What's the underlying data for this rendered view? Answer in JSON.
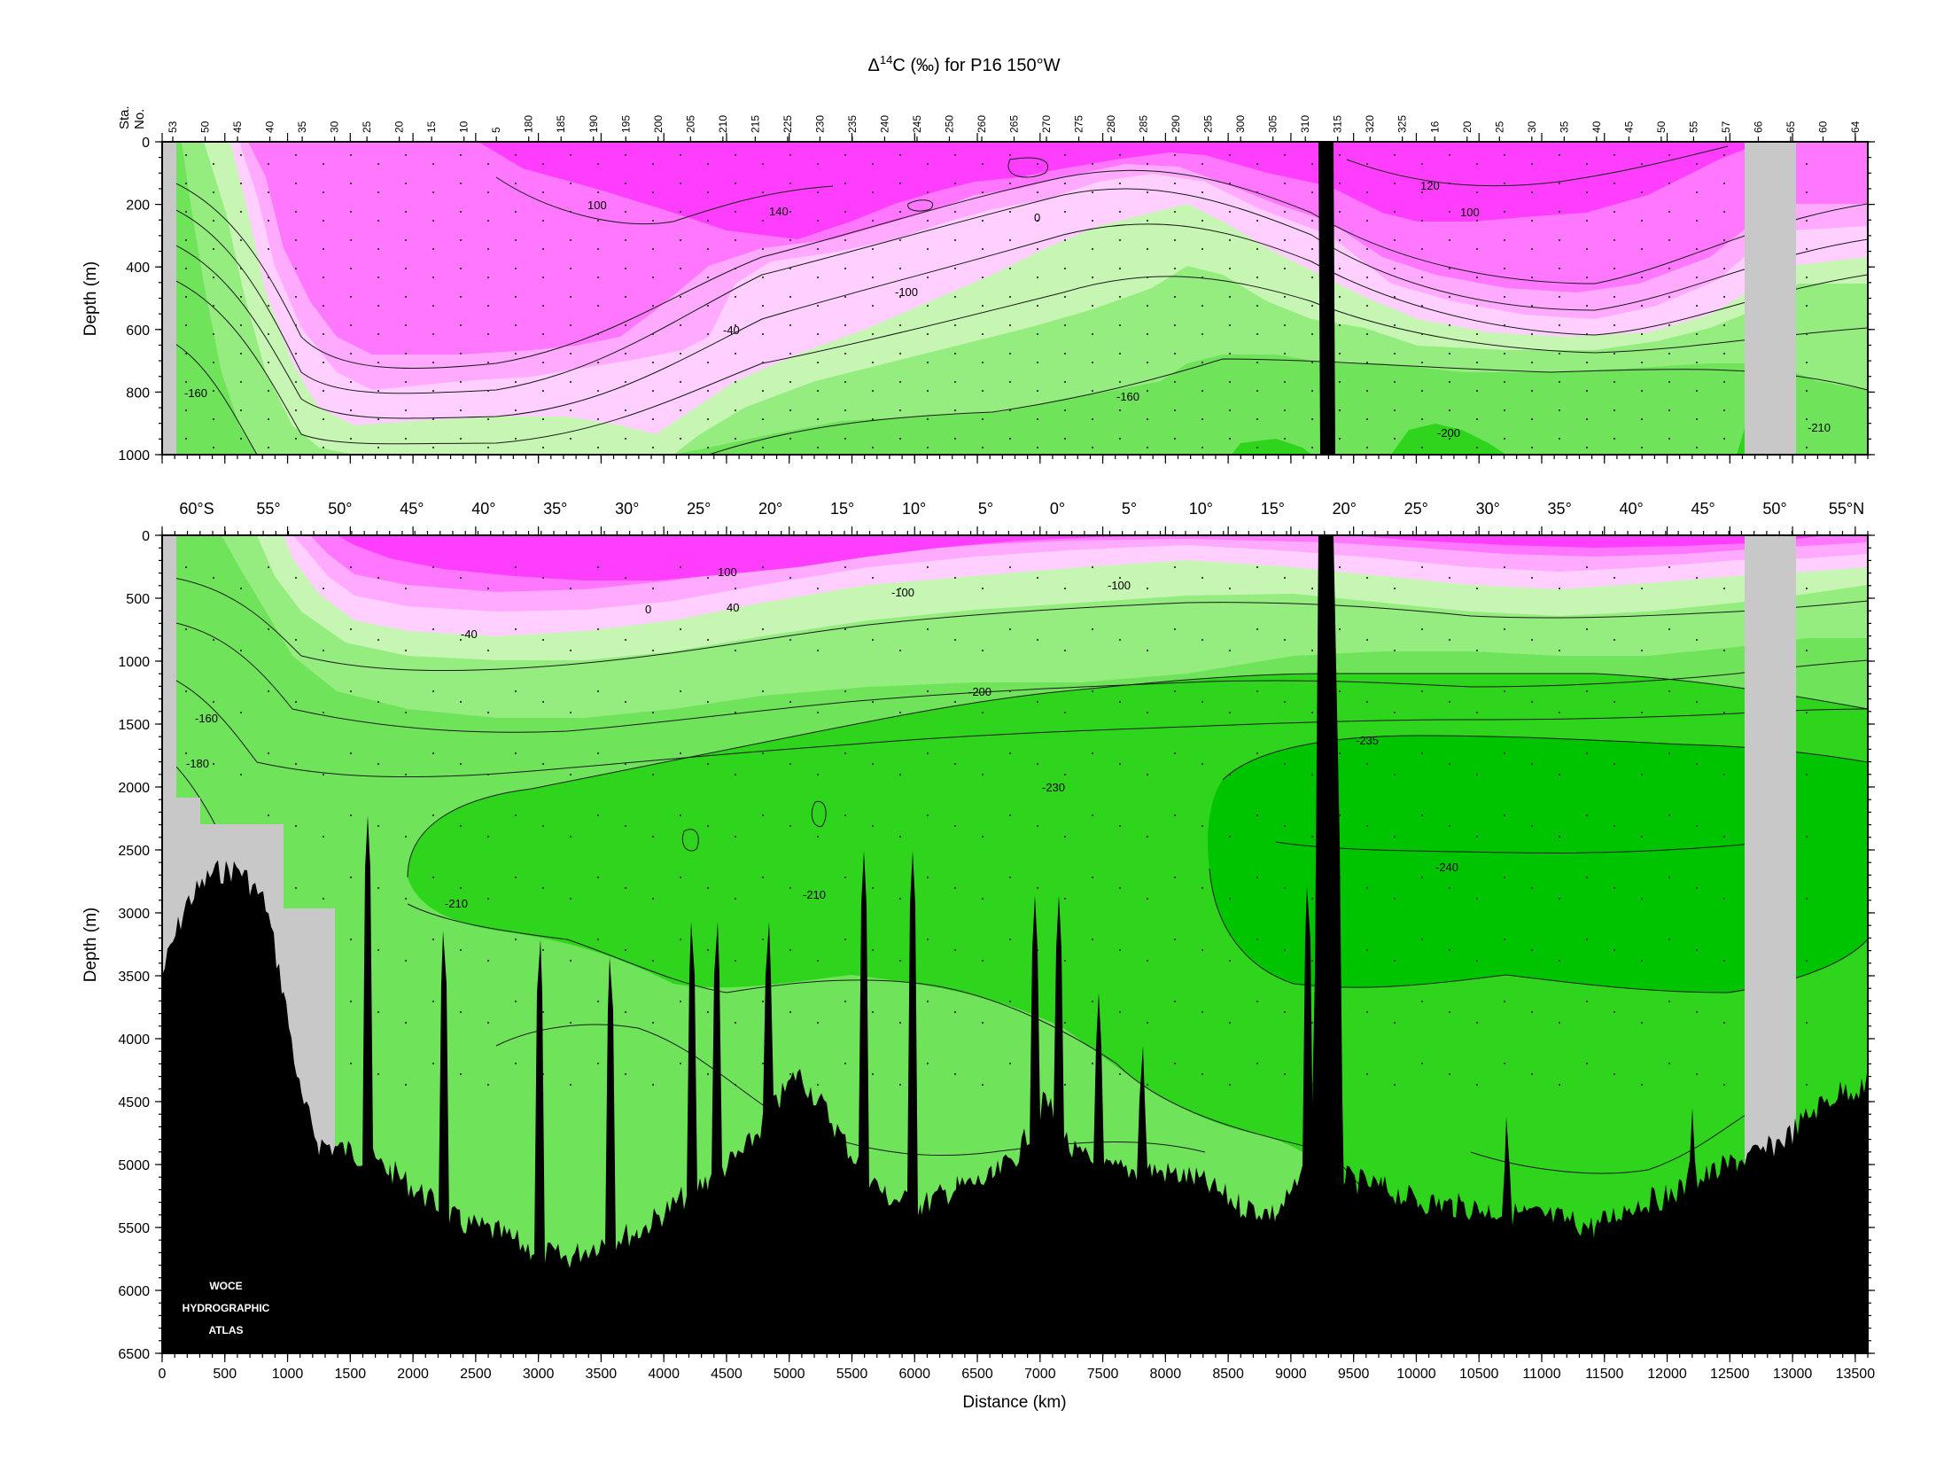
{
  "chart_data": {
    "type": "heatmap",
    "title_prefix": "Δ",
    "title_sup": "14",
    "title_rest": "C (‰) for P16 150°W",
    "station_axis_label": [
      "Sta.",
      "No."
    ],
    "stations": [
      "53",
      "50",
      "45",
      "40",
      "35",
      "30",
      "25",
      "20",
      "15",
      "10",
      "5",
      "180",
      "185",
      "190",
      "195",
      "200",
      "205",
      "210",
      "215",
      "225",
      "230",
      "235",
      "240",
      "245",
      "250",
      "260",
      "265",
      "270",
      "275",
      "280",
      "285",
      "290",
      "295",
      "300",
      "305",
      "310",
      "315",
      "320",
      "325",
      "16",
      "20",
      "25",
      "30",
      "35",
      "40",
      "45",
      "50",
      "55",
      "57",
      "66",
      "65",
      "60",
      "64"
    ],
    "latitudes": [
      "60°S",
      "55°",
      "50°",
      "45°",
      "40°",
      "35°",
      "30°",
      "25°",
      "20°",
      "15°",
      "10°",
      "5°",
      "0°",
      "5°",
      "10°",
      "15°",
      "20°",
      "25°",
      "30°",
      "35°",
      "40°",
      "45°",
      "50°",
      "55°N"
    ],
    "top_panel": {
      "ylabel": "Depth (m)",
      "yticks": [
        0,
        200,
        400,
        600,
        800,
        1000
      ],
      "ylim": [
        0,
        1000
      ],
      "contour_labels": [
        "100",
        "140",
        "0",
        "-100",
        "-40",
        "-160",
        "-160",
        "-200",
        "-210",
        "120",
        "100"
      ]
    },
    "bottom_panel": {
      "ylabel": "Depth (m)",
      "yticks": [
        0,
        500,
        1000,
        1500,
        2000,
        2500,
        3000,
        3500,
        4000,
        4500,
        5000,
        5500,
        6000,
        6500
      ],
      "ylim": [
        0,
        6500
      ],
      "contour_labels": [
        "100",
        "0",
        "40",
        "-100",
        "-100",
        "-40",
        "-160",
        "-180",
        "-200",
        "-235",
        "-230",
        "-240",
        "-210",
        "-210"
      ]
    },
    "xlabel": "Distance (km)",
    "xticks": [
      0,
      500,
      1000,
      1500,
      2000,
      2500,
      3000,
      3500,
      4000,
      4500,
      5000,
      5500,
      6000,
      6500,
      7000,
      7500,
      8000,
      8500,
      9000,
      9500,
      10000,
      10500,
      11000,
      11500,
      12000,
      12500,
      13000,
      13500
    ],
    "xlim": [
      0,
      13600
    ],
    "x_labels": [
      "0",
      "500",
      "1000",
      "1500",
      "2000",
      "2500",
      "3000",
      "3500",
      "4000",
      "4500",
      "5000",
      "5500",
      "6000",
      "6500",
      "7000",
      "7500",
      "8000",
      "8500",
      "9000",
      "9500",
      "10000",
      "10500",
      "11000",
      "11500",
      "12000",
      "12500",
      "13000",
      "13500"
    ],
    "y_labels_top": [
      "0",
      "200",
      "400",
      "600",
      "800",
      "1000"
    ],
    "y_labels_bottom": [
      "0",
      "500",
      "1000",
      "1500",
      "2000",
      "2500",
      "3000",
      "3500",
      "4000",
      "4500",
      "5000",
      "5500",
      "6000",
      "6500"
    ],
    "colors": {
      "gt_100": "#ff3dff",
      "50_100": "#ff77ff",
      "0_50": "#ffaaff",
      "-40_0": "#ffd0ff",
      "-100_-40": "#c6f5b4",
      "-160_-100": "#95ec7f",
      "-200_-160": "#6fe35a",
      "-230_-200": "#2fd51c",
      "lt_-230": "#00c400",
      "bathymetry": "#000000",
      "no_data": "#c8c8c8"
    },
    "logo": [
      "WOCE",
      "HYDROGRAPHIC",
      "ATLAS"
    ]
  }
}
